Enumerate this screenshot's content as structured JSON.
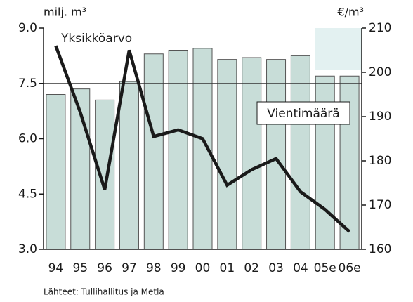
{
  "chart_data": {
    "type": "bar",
    "y_label": "milj. m³",
    "y2_label": "€/m³",
    "source": "Lähteet: Tullihallitus ja Metla",
    "categories": [
      "94",
      "95",
      "96",
      "97",
      "98",
      "99",
      "00",
      "01",
      "02",
      "03",
      "04",
      "05e",
      "06e"
    ],
    "series": [
      {
        "name": "Vientimäärä",
        "type": "bar",
        "color": "#c8ddd8",
        "values": [
          7.2,
          7.35,
          7.05,
          7.55,
          8.3,
          8.4,
          8.45,
          8.15,
          8.2,
          8.15,
          8.25,
          7.7,
          7.7
        ]
      },
      {
        "name": "Yksikköarvo",
        "type": "line",
        "axis": "y2",
        "color": "#1a1a1a",
        "values": [
          206,
          191,
          173.5,
          205,
          185.5,
          187,
          185,
          174.5,
          178,
          180.5,
          173,
          169,
          164
        ]
      }
    ],
    "ylim": [
      3,
      9
    ],
    "yticks": [
      {
        "value": 3,
        "label": "3.0"
      },
      {
        "value": 4.5,
        "label": "4.5"
      },
      {
        "value": 6,
        "label": "6.0"
      },
      {
        "value": 7.5,
        "label": "7.5"
      },
      {
        "value": 9,
        "label": "9.0"
      }
    ],
    "y2lim": [
      160,
      210
    ],
    "y2ticks": [
      160,
      170,
      180,
      190,
      200,
      210
    ],
    "reference_line": 7.5
  }
}
